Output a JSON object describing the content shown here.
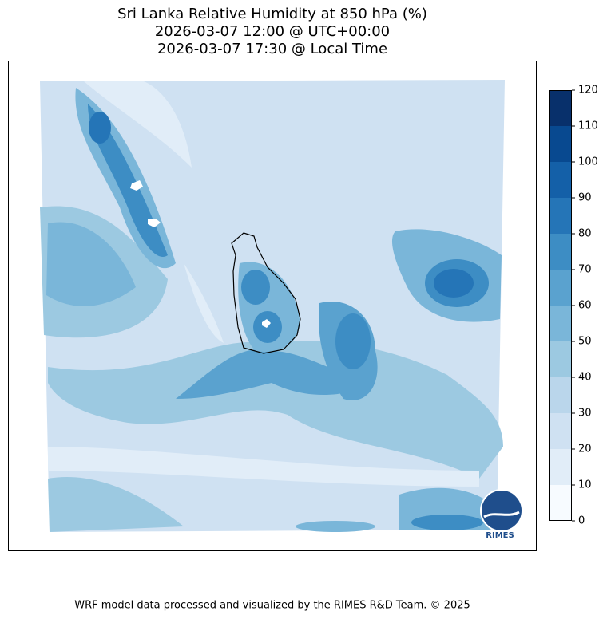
{
  "title": [
    "Sri Lanka Relative Humidity at 850 hPa (%)",
    "2026-03-07 12:00 @ UTC+00:00",
    "2026-03-07 17:30 @ Local Time"
  ],
  "colorbar": {
    "ticks": [
      0,
      10,
      20,
      30,
      40,
      50,
      60,
      70,
      80,
      90,
      100,
      110,
      120
    ],
    "colors": [
      "#f7fbff",
      "#e1edf8",
      "#cfe1f2",
      "#bad6eb",
      "#9cc9e1",
      "#7ab6d9",
      "#5aa2cf",
      "#3d8dc4",
      "#2575b7",
      "#1460a8",
      "#084990",
      "#08306b"
    ]
  },
  "logo": "RIMES",
  "footer": "WRF model data processed and visualized by the RIMES R&D Team. © 2025"
}
